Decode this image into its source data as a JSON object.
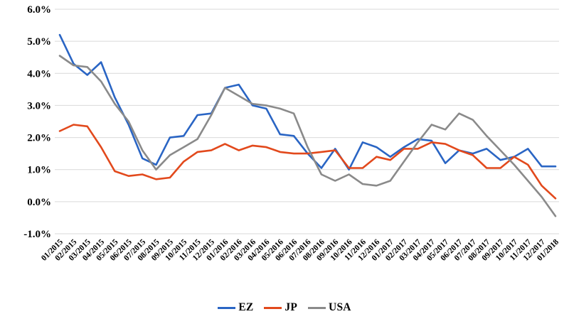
{
  "chart_data": {
    "type": "line",
    "title": "",
    "xlabel": "",
    "ylabel": "",
    "grid": "horizontal",
    "legend_position": "bottom",
    "gridline_color": "#D9D9D9",
    "axis_text_color": "#000000",
    "ylim": [
      -1,
      6
    ],
    "yticks": [
      {
        "v": 6,
        "label": "6.0%"
      },
      {
        "v": 5,
        "label": "5.0%"
      },
      {
        "v": 4,
        "label": "4.0%"
      },
      {
        "v": 3,
        "label": "3.0%"
      },
      {
        "v": 2,
        "label": "2.0%"
      },
      {
        "v": 1,
        "label": "1.0%"
      },
      {
        "v": 0,
        "label": "0.0%"
      },
      {
        "v": -1,
        "label": "-1.0%"
      }
    ],
    "categories": [
      "01/2015",
      "02/2015",
      "03/2015",
      "04/2015",
      "05/2015",
      "06/2015",
      "07/2015",
      "08/2015",
      "09/2015",
      "10/2015",
      "11/2015",
      "12/2015",
      "01/2016",
      "02/2016",
      "03/2016",
      "04/2016",
      "05/2016",
      "06/2016",
      "07/2016",
      "08/2016",
      "09/2016",
      "10/2016",
      "11/2016",
      "12/2016",
      "01/2017",
      "02/2017",
      "03/2017",
      "04/2017",
      "05/2017",
      "06/2017",
      "07/2017",
      "08/2017",
      "09/2017",
      "10/2017",
      "11/2017",
      "12/2017",
      "01/2018"
    ],
    "series": [
      {
        "name": "EZ",
        "color": "#2A65C4",
        "values": [
          5.2,
          4.3,
          3.95,
          4.35,
          3.25,
          2.4,
          1.35,
          1.15,
          2.0,
          2.05,
          2.7,
          2.75,
          3.55,
          3.65,
          3.0,
          2.9,
          2.1,
          2.05,
          1.5,
          1.05,
          1.65,
          1.0,
          1.85,
          1.7,
          1.4,
          1.7,
          1.95,
          1.9,
          1.2,
          1.6,
          1.5,
          1.65,
          1.3,
          1.4,
          1.65,
          1.1,
          1.1
        ]
      },
      {
        "name": "JP",
        "color": "#E2491C",
        "values": [
          2.2,
          2.4,
          2.35,
          1.7,
          0.95,
          0.8,
          0.85,
          0.7,
          0.75,
          1.25,
          1.55,
          1.6,
          1.8,
          1.6,
          1.75,
          1.7,
          1.55,
          1.5,
          1.5,
          1.55,
          1.6,
          1.05,
          1.05,
          1.4,
          1.3,
          1.65,
          1.65,
          1.85,
          1.8,
          1.6,
          1.45,
          1.05,
          1.05,
          1.4,
          1.15,
          0.5,
          0.1
        ]
      },
      {
        "name": "USA",
        "color": "#8A8A8A",
        "values": [
          4.55,
          4.25,
          4.2,
          3.75,
          3.05,
          2.5,
          1.6,
          1.0,
          1.45,
          1.7,
          1.95,
          2.7,
          3.55,
          3.3,
          3.05,
          3.0,
          2.9,
          2.75,
          1.7,
          0.85,
          0.65,
          0.85,
          0.55,
          0.5,
          0.65,
          1.25,
          1.85,
          2.4,
          2.25,
          2.75,
          2.55,
          2.05,
          1.6,
          1.15,
          0.65,
          0.15,
          -0.45
        ]
      }
    ]
  }
}
